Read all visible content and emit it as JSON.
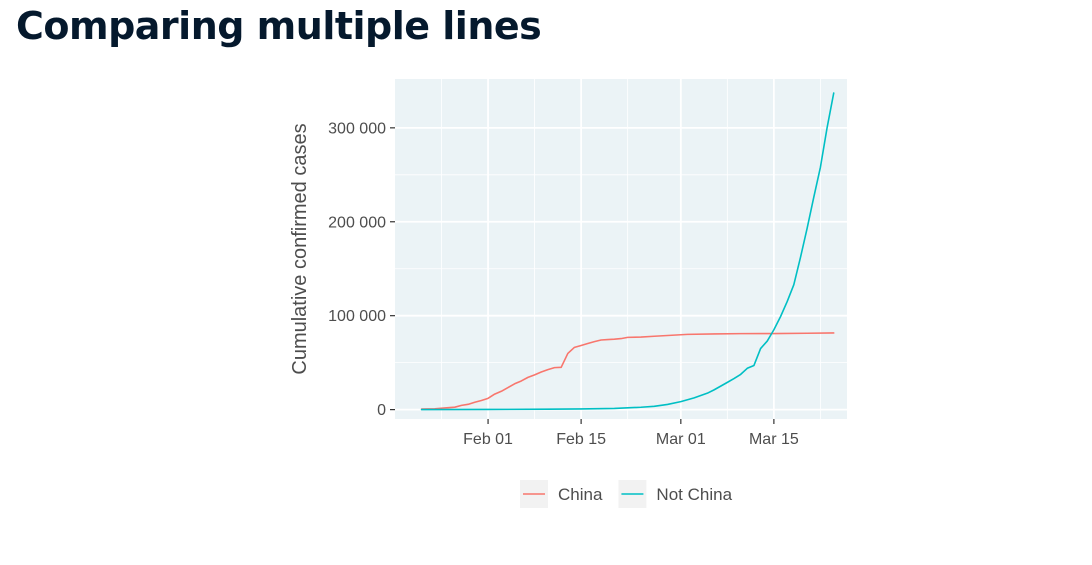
{
  "page": {
    "title": "Comparing multiple lines"
  },
  "chart_data": {
    "type": "line",
    "title": "",
    "xlabel": "",
    "ylabel": "Cumulative confirmed cases",
    "x_type": "date",
    "xlim": [
      "2020-01-18",
      "2020-03-26"
    ],
    "ylim": [
      -10000,
      352000
    ],
    "x_ticks": [
      {
        "date": "2020-02-01",
        "label": "Feb 01"
      },
      {
        "date": "2020-02-15",
        "label": "Feb 15"
      },
      {
        "date": "2020-03-01",
        "label": "Mar 01"
      },
      {
        "date": "2020-03-15",
        "label": "Mar 15"
      }
    ],
    "x_minor_ticks": [
      "2020-01-25",
      "2020-02-08",
      "2020-02-22",
      "2020-03-08",
      "2020-03-22"
    ],
    "y_ticks": [
      {
        "value": 0,
        "label": "0"
      },
      {
        "value": 100000,
        "label": "100 000"
      },
      {
        "value": 200000,
        "label": "200 000"
      },
      {
        "value": 300000,
        "label": "300 000"
      }
    ],
    "y_minor_ticks": [
      50000,
      150000,
      250000
    ],
    "grid": true,
    "legend_position": "bottom",
    "series": [
      {
        "name": "China",
        "color": "#f8766d",
        "points": [
          [
            "2020-01-22",
            548
          ],
          [
            "2020-01-24",
            918
          ],
          [
            "2020-01-26",
            2000
          ],
          [
            "2020-01-27",
            2600
          ],
          [
            "2020-01-28",
            4500
          ],
          [
            "2020-01-29",
            5600
          ],
          [
            "2020-01-30",
            7800
          ],
          [
            "2020-01-31",
            9700
          ],
          [
            "2020-02-01",
            12000
          ],
          [
            "2020-02-02",
            16500
          ],
          [
            "2020-02-03",
            19500
          ],
          [
            "2020-02-04",
            23500
          ],
          [
            "2020-02-05",
            27500
          ],
          [
            "2020-02-06",
            30500
          ],
          [
            "2020-02-07",
            34300
          ],
          [
            "2020-02-08",
            37000
          ],
          [
            "2020-02-09",
            40000
          ],
          [
            "2020-02-10",
            42600
          ],
          [
            "2020-02-11",
            44700
          ],
          [
            "2020-02-12",
            45000
          ],
          [
            "2020-02-13",
            59800
          ],
          [
            "2020-02-14",
            66300
          ],
          [
            "2020-02-15",
            68300
          ],
          [
            "2020-02-16",
            70400
          ],
          [
            "2020-02-17",
            72400
          ],
          [
            "2020-02-18",
            74100
          ],
          [
            "2020-02-19",
            74600
          ],
          [
            "2020-02-20",
            75000
          ],
          [
            "2020-02-21",
            75600
          ],
          [
            "2020-02-22",
            76900
          ],
          [
            "2020-02-24",
            77200
          ],
          [
            "2020-02-26",
            78100
          ],
          [
            "2020-02-29",
            79300
          ],
          [
            "2020-03-02",
            80100
          ],
          [
            "2020-03-06",
            80600
          ],
          [
            "2020-03-10",
            80900
          ],
          [
            "2020-03-15",
            81000
          ],
          [
            "2020-03-20",
            81300
          ],
          [
            "2020-03-24",
            81600
          ]
        ]
      },
      {
        "name": "Not China",
        "color": "#00bfc4",
        "points": [
          [
            "2020-01-22",
            7
          ],
          [
            "2020-02-01",
            150
          ],
          [
            "2020-02-10",
            450
          ],
          [
            "2020-02-15",
            700
          ],
          [
            "2020-02-20",
            1200
          ],
          [
            "2020-02-24",
            2500
          ],
          [
            "2020-02-26",
            3500
          ],
          [
            "2020-02-28",
            5500
          ],
          [
            "2020-03-01",
            8500
          ],
          [
            "2020-03-03",
            12500
          ],
          [
            "2020-03-05",
            17500
          ],
          [
            "2020-03-06",
            21000
          ],
          [
            "2020-03-07",
            25000
          ],
          [
            "2020-03-08",
            29000
          ],
          [
            "2020-03-09",
            33000
          ],
          [
            "2020-03-10",
            37500
          ],
          [
            "2020-03-11",
            44000
          ],
          [
            "2020-03-12",
            47000
          ],
          [
            "2020-03-13",
            65000
          ],
          [
            "2020-03-14",
            73000
          ],
          [
            "2020-03-15",
            85000
          ],
          [
            "2020-03-16",
            99000
          ],
          [
            "2020-03-17",
            115000
          ],
          [
            "2020-03-18",
            133000
          ],
          [
            "2020-03-19",
            162000
          ],
          [
            "2020-03-20",
            193000
          ],
          [
            "2020-03-21",
            226000
          ],
          [
            "2020-03-22",
            258000
          ],
          [
            "2020-03-23",
            300000
          ],
          [
            "2020-03-24",
            337000
          ]
        ]
      }
    ]
  }
}
